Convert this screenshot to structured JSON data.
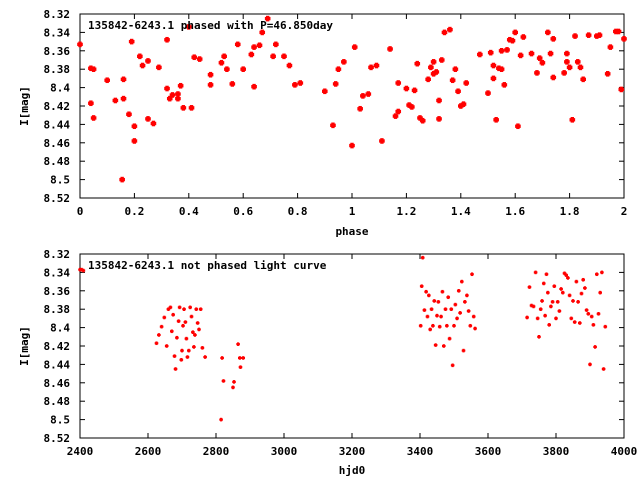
{
  "chart_data": [
    {
      "type": "scatter",
      "title": "135842-6243.1 phased with P=46.850day",
      "xlabel": "phase",
      "ylabel": "I[mag]",
      "xlim": [
        0,
        2
      ],
      "ylim": [
        8.52,
        8.32
      ],
      "y_inverted": true,
      "grid": false,
      "marker_color": "#ff0000",
      "xticks": [
        "0",
        "0.2",
        "0.4",
        "0.6",
        "0.8",
        "1",
        "1.2",
        "1.4",
        "1.6",
        "1.8",
        "2"
      ],
      "yticks": [
        "8.32",
        "8.34",
        "8.36",
        "8.38",
        "8.4",
        "8.42",
        "8.44",
        "8.46",
        "8.48",
        "8.5",
        "8.52"
      ],
      "points": [
        [
          0.0,
          8.353
        ],
        [
          0.04,
          8.417
        ],
        [
          0.04,
          8.379
        ],
        [
          0.05,
          8.38
        ],
        [
          0.05,
          8.433
        ],
        [
          0.1,
          8.392
        ],
        [
          0.13,
          8.414
        ],
        [
          0.155,
          8.5
        ],
        [
          0.16,
          8.412
        ],
        [
          0.16,
          8.391
        ],
        [
          0.18,
          8.429
        ],
        [
          0.19,
          8.35
        ],
        [
          0.2,
          8.458
        ],
        [
          0.2,
          8.442
        ],
        [
          0.22,
          8.366
        ],
        [
          0.23,
          8.376
        ],
        [
          0.25,
          8.371
        ],
        [
          0.25,
          8.434
        ],
        [
          0.27,
          8.439
        ],
        [
          0.29,
          8.378
        ],
        [
          0.32,
          8.348
        ],
        [
          0.32,
          8.401
        ],
        [
          0.33,
          8.412
        ],
        [
          0.34,
          8.408
        ],
        [
          0.36,
          8.407
        ],
        [
          0.36,
          8.412
        ],
        [
          0.37,
          8.398
        ],
        [
          0.38,
          8.422
        ],
        [
          0.4,
          8.334
        ],
        [
          0.41,
          8.422
        ],
        [
          0.42,
          8.367
        ],
        [
          0.44,
          8.369
        ],
        [
          0.48,
          8.386
        ],
        [
          0.48,
          8.397
        ],
        [
          0.52,
          8.373
        ],
        [
          0.53,
          8.366
        ],
        [
          0.54,
          8.38
        ],
        [
          0.56,
          8.396
        ],
        [
          0.58,
          8.353
        ],
        [
          0.6,
          8.38
        ],
        [
          0.63,
          8.364
        ],
        [
          0.64,
          8.356
        ],
        [
          0.64,
          8.399
        ],
        [
          0.66,
          8.354
        ],
        [
          0.67,
          8.34
        ],
        [
          0.69,
          8.325
        ],
        [
          0.71,
          8.366
        ],
        [
          0.72,
          8.353
        ],
        [
          0.75,
          8.366
        ],
        [
          0.77,
          8.376
        ],
        [
          0.79,
          8.397
        ],
        [
          0.81,
          8.395
        ],
        [
          0.9,
          8.404
        ],
        [
          0.93,
          8.441
        ],
        [
          0.94,
          8.396
        ],
        [
          0.95,
          8.38
        ],
        [
          0.97,
          8.372
        ],
        [
          1.0,
          8.463
        ],
        [
          1.01,
          8.356
        ],
        [
          1.03,
          8.423
        ],
        [
          1.04,
          8.409
        ],
        [
          1.06,
          8.407
        ],
        [
          1.07,
          8.378
        ],
        [
          1.09,
          8.376
        ],
        [
          1.11,
          8.458
        ],
        [
          1.14,
          8.358
        ],
        [
          1.16,
          8.431
        ],
        [
          1.17,
          8.426
        ],
        [
          1.17,
          8.395
        ],
        [
          1.2,
          8.401
        ],
        [
          1.21,
          8.419
        ],
        [
          1.22,
          8.421
        ],
        [
          1.23,
          8.403
        ],
        [
          1.24,
          8.374
        ],
        [
          1.25,
          8.433
        ],
        [
          1.26,
          8.436
        ],
        [
          1.28,
          8.391
        ],
        [
          1.29,
          8.378
        ],
        [
          1.3,
          8.385
        ],
        [
          1.3,
          8.372
        ],
        [
          1.31,
          8.383
        ],
        [
          1.32,
          8.434
        ],
        [
          1.32,
          8.414
        ],
        [
          1.33,
          8.37
        ],
        [
          1.34,
          8.34
        ],
        [
          1.36,
          8.337
        ],
        [
          1.37,
          8.392
        ],
        [
          1.38,
          8.38
        ],
        [
          1.39,
          8.404
        ],
        [
          1.4,
          8.42
        ],
        [
          1.41,
          8.418
        ],
        [
          1.42,
          8.395
        ],
        [
          1.47,
          8.364
        ],
        [
          1.5,
          8.406
        ],
        [
          1.51,
          8.362
        ],
        [
          1.52,
          8.376
        ],
        [
          1.52,
          8.39
        ],
        [
          1.53,
          8.435
        ],
        [
          1.54,
          8.379
        ],
        [
          1.55,
          8.36
        ],
        [
          1.55,
          8.38
        ],
        [
          1.56,
          8.397
        ],
        [
          1.57,
          8.359
        ],
        [
          1.58,
          8.348
        ],
        [
          1.59,
          8.349
        ],
        [
          1.6,
          8.34
        ],
        [
          1.61,
          8.442
        ],
        [
          1.62,
          8.365
        ],
        [
          1.63,
          8.345
        ],
        [
          1.66,
          8.363
        ],
        [
          1.68,
          8.384
        ],
        [
          1.69,
          8.368
        ],
        [
          1.7,
          8.373
        ],
        [
          1.72,
          8.34
        ],
        [
          1.73,
          8.363
        ],
        [
          1.74,
          8.347
        ],
        [
          1.74,
          8.389
        ],
        [
          1.78,
          8.384
        ],
        [
          1.79,
          8.372
        ],
        [
          1.79,
          8.363
        ],
        [
          1.8,
          8.378
        ],
        [
          1.81,
          8.435
        ],
        [
          1.82,
          8.344
        ],
        [
          1.83,
          8.372
        ],
        [
          1.84,
          8.378
        ],
        [
          1.85,
          8.391
        ],
        [
          1.87,
          8.343
        ],
        [
          1.9,
          8.344
        ],
        [
          1.91,
          8.343
        ],
        [
          1.94,
          8.385
        ],
        [
          1.95,
          8.356
        ],
        [
          1.97,
          8.339
        ],
        [
          1.98,
          8.339
        ],
        [
          1.99,
          8.402
        ],
        [
          2.0,
          8.347
        ]
      ]
    },
    {
      "type": "scatter",
      "title": "135842-6243.1 not phased light curve",
      "xlabel": "hjd0",
      "ylabel": "I[mag]",
      "xlim": [
        2400,
        4000
      ],
      "ylim": [
        8.52,
        8.32
      ],
      "y_inverted": true,
      "grid": false,
      "marker_color": "#ff0000",
      "xticks": [
        "2400",
        "2600",
        "2800",
        "3000",
        "3200",
        "3400",
        "3600",
        "3800",
        "4000"
      ],
      "yticks": [
        "8.32",
        "8.34",
        "8.36",
        "8.38",
        "8.4",
        "8.42",
        "8.44",
        "8.46",
        "8.48",
        "8.5",
        "8.52"
      ],
      "points": [
        [
          2400,
          8.337
        ],
        [
          2405,
          8.337
        ],
        [
          2410,
          8.338
        ],
        [
          2625,
          8.417
        ],
        [
          2632,
          8.408
        ],
        [
          2640,
          8.399
        ],
        [
          2648,
          8.389
        ],
        [
          2655,
          8.42
        ],
        [
          2660,
          8.38
        ],
        [
          2666,
          8.378
        ],
        [
          2670,
          8.404
        ],
        [
          2674,
          8.386
        ],
        [
          2678,
          8.431
        ],
        [
          2681,
          8.445
        ],
        [
          2685,
          8.411
        ],
        [
          2690,
          8.393
        ],
        [
          2693,
          8.378
        ],
        [
          2698,
          8.435
        ],
        [
          2700,
          8.425
        ],
        [
          2703,
          8.398
        ],
        [
          2706,
          8.38
        ],
        [
          2710,
          8.394
        ],
        [
          2713,
          8.412
        ],
        [
          2716,
          8.432
        ],
        [
          2720,
          8.425
        ],
        [
          2724,
          8.378
        ],
        [
          2728,
          8.388
        ],
        [
          2732,
          8.405
        ],
        [
          2735,
          8.421
        ],
        [
          2738,
          8.408
        ],
        [
          2742,
          8.38
        ],
        [
          2746,
          8.395
        ],
        [
          2750,
          8.402
        ],
        [
          2755,
          8.38
        ],
        [
          2760,
          8.422
        ],
        [
          2768,
          8.432
        ],
        [
          2815,
          8.5
        ],
        [
          2818,
          8.433
        ],
        [
          2822,
          8.458
        ],
        [
          2850,
          8.465
        ],
        [
          2853,
          8.459
        ],
        [
          2865,
          8.418
        ],
        [
          2870,
          8.433
        ],
        [
          2872,
          8.443
        ],
        [
          2880,
          8.433
        ],
        [
          3402,
          8.398
        ],
        [
          3405,
          8.355
        ],
        [
          3408,
          8.324
        ],
        [
          3413,
          8.381
        ],
        [
          3418,
          8.361
        ],
        [
          3422,
          8.388
        ],
        [
          3426,
          8.365
        ],
        [
          3430,
          8.402
        ],
        [
          3434,
          8.38
        ],
        [
          3438,
          8.398
        ],
        [
          3442,
          8.371
        ],
        [
          3446,
          8.419
        ],
        [
          3450,
          8.387
        ],
        [
          3454,
          8.372
        ],
        [
          3458,
          8.399
        ],
        [
          3462,
          8.388
        ],
        [
          3466,
          8.361
        ],
        [
          3470,
          8.42
        ],
        [
          3475,
          8.38
        ],
        [
          3479,
          8.398
        ],
        [
          3483,
          8.367
        ],
        [
          3487,
          8.412
        ],
        [
          3492,
          8.38
        ],
        [
          3496,
          8.441
        ],
        [
          3500,
          8.398
        ],
        [
          3504,
          8.375
        ],
        [
          3509,
          8.39
        ],
        [
          3514,
          8.36
        ],
        [
          3518,
          8.384
        ],
        [
          3523,
          8.35
        ],
        [
          3528,
          8.425
        ],
        [
          3532,
          8.372
        ],
        [
          3538,
          8.365
        ],
        [
          3543,
          8.382
        ],
        [
          3548,
          8.398
        ],
        [
          3553,
          8.342
        ],
        [
          3558,
          8.388
        ],
        [
          3562,
          8.401
        ],
        [
          3715,
          8.389
        ],
        [
          3722,
          8.356
        ],
        [
          3728,
          8.376
        ],
        [
          3734,
          8.377
        ],
        [
          3740,
          8.34
        ],
        [
          3746,
          8.39
        ],
        [
          3750,
          8.41
        ],
        [
          3755,
          8.38
        ],
        [
          3759,
          8.371
        ],
        [
          3764,
          8.352
        ],
        [
          3768,
          8.387
        ],
        [
          3772,
          8.342
        ],
        [
          3776,
          8.362
        ],
        [
          3780,
          8.397
        ],
        [
          3785,
          8.377
        ],
        [
          3790,
          8.372
        ],
        [
          3795,
          8.355
        ],
        [
          3800,
          8.39
        ],
        [
          3805,
          8.372
        ],
        [
          3810,
          8.382
        ],
        [
          3815,
          8.358
        ],
        [
          3820,
          8.362
        ],
        [
          3825,
          8.341
        ],
        [
          3830,
          8.343
        ],
        [
          3835,
          8.346
        ],
        [
          3840,
          8.365
        ],
        [
          3845,
          8.39
        ],
        [
          3850,
          8.371
        ],
        [
          3855,
          8.394
        ],
        [
          3860,
          8.35
        ],
        [
          3865,
          8.372
        ],
        [
          3870,
          8.395
        ],
        [
          3875,
          8.363
        ],
        [
          3880,
          8.348
        ],
        [
          3885,
          8.357
        ],
        [
          3890,
          8.381
        ],
        [
          3895,
          8.385
        ],
        [
          3900,
          8.44
        ],
        [
          3905,
          8.388
        ],
        [
          3910,
          8.397
        ],
        [
          3915,
          8.421
        ],
        [
          3920,
          8.342
        ],
        [
          3925,
          8.385
        ],
        [
          3930,
          8.362
        ],
        [
          3935,
          8.34
        ],
        [
          3940,
          8.445
        ],
        [
          3945,
          8.399
        ]
      ]
    }
  ]
}
